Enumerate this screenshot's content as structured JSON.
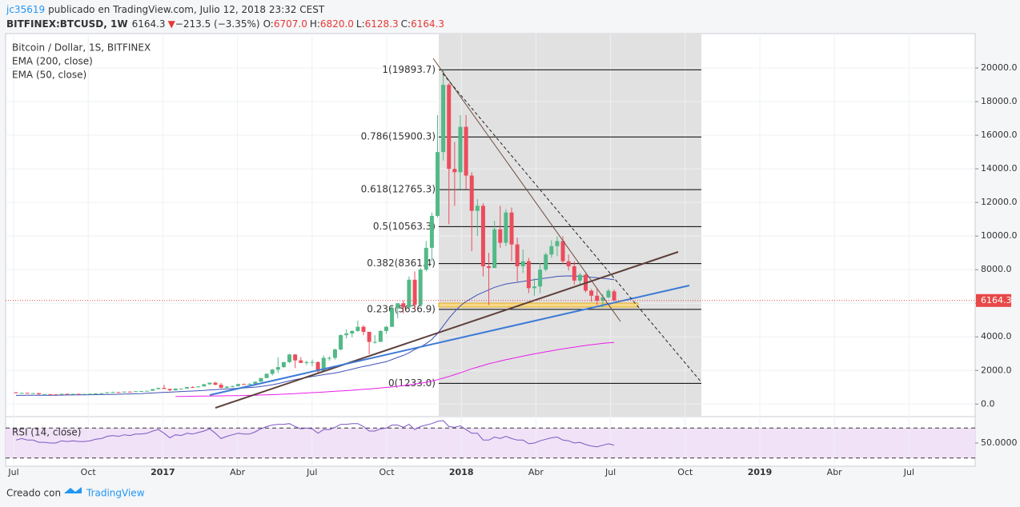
{
  "header": {
    "user": "jc35619",
    "published": "publicado en TradingView.com, Julio 12, 2018 23:32 CEST",
    "symbol": "BITFINEX:BTCUSD, 1W",
    "last": "6164.3",
    "arrow": "▼",
    "change": "−213.5 (−3.35%)",
    "o_label": "O:",
    "o": "6707.0",
    "h_label": "H:",
    "h": "6820.0",
    "l_label": "L:",
    "l": "6128.3",
    "c_label": "C:",
    "c": "6164.3"
  },
  "footer": {
    "text": "Creado con",
    "brand": "TradingView"
  },
  "chart_data": {
    "type": "candlestick",
    "title": "Bitcoin / Dollar, 1S, BITFINEX",
    "up_color": "#53b987",
    "down_color": "#eb4d5c",
    "grid": true,
    "ohlc": [
      [
        700,
        710,
        640,
        650
      ],
      [
        650,
        680,
        640,
        665
      ],
      [
        665,
        675,
        650,
        655
      ],
      [
        655,
        660,
        640,
        655
      ],
      [
        655,
        660,
        540,
        590
      ],
      [
        590,
        600,
        585,
        590
      ],
      [
        590,
        595,
        570,
        580
      ],
      [
        580,
        590,
        570,
        575
      ],
      [
        575,
        615,
        570,
        610
      ],
      [
        610,
        615,
        600,
        605
      ],
      [
        605,
        615,
        600,
        610
      ],
      [
        610,
        612,
        595,
        605
      ],
      [
        605,
        610,
        600,
        605
      ],
      [
        605,
        620,
        605,
        615
      ],
      [
        615,
        640,
        610,
        640
      ],
      [
        640,
        655,
        630,
        650
      ],
      [
        650,
        705,
        645,
        700
      ],
      [
        700,
        740,
        690,
        710
      ],
      [
        710,
        715,
        690,
        705
      ],
      [
        705,
        745,
        700,
        740
      ],
      [
        740,
        750,
        725,
        735
      ],
      [
        735,
        770,
        730,
        765
      ],
      [
        765,
        780,
        750,
        775
      ],
      [
        775,
        795,
        770,
        790
      ],
      [
        790,
        900,
        785,
        890
      ],
      [
        890,
        980,
        880,
        960
      ],
      [
        960,
        1150,
        890,
        900
      ],
      [
        900,
        910,
        760,
        820
      ],
      [
        820,
        930,
        810,
        920
      ],
      [
        920,
        930,
        880,
        920
      ],
      [
        920,
        1020,
        915,
        1010
      ],
      [
        1010,
        1060,
        980,
        1000
      ],
      [
        1000,
        1060,
        995,
        1050
      ],
      [
        1050,
        1200,
        1045,
        1180
      ],
      [
        1180,
        1290,
        1140,
        1270
      ],
      [
        1270,
        1330,
        1120,
        1150
      ],
      [
        1150,
        1260,
        940,
        970
      ],
      [
        970,
        1070,
        890,
        1040
      ],
      [
        1040,
        1100,
        1000,
        1070
      ],
      [
        1070,
        1210,
        1050,
        1190
      ],
      [
        1190,
        1220,
        1160,
        1180
      ],
      [
        1180,
        1240,
        1170,
        1200
      ],
      [
        1200,
        1340,
        1190,
        1330
      ],
      [
        1330,
        1560,
        1320,
        1550
      ],
      [
        1550,
        1830,
        1540,
        1800
      ],
      [
        1800,
        2100,
        1700,
        2050
      ],
      [
        2050,
        2790,
        1850,
        2200
      ],
      [
        2200,
        2500,
        2150,
        2500
      ],
      [
        2500,
        3000,
        2450,
        2950
      ],
      [
        2950,
        2980,
        2140,
        2600
      ],
      [
        2600,
        2790,
        2450,
        2450
      ],
      [
        2450,
        2580,
        2320,
        2500
      ],
      [
        2500,
        2650,
        2250,
        2500
      ],
      [
        2500,
        2550,
        1840,
        1950
      ],
      [
        1950,
        2900,
        1940,
        2750
      ],
      [
        2750,
        2850,
        2580,
        2750
      ],
      [
        2750,
        3300,
        2650,
        3250
      ],
      [
        3250,
        4150,
        3200,
        4100
      ],
      [
        4100,
        4450,
        3900,
        4200
      ],
      [
        4200,
        4400,
        3970,
        4350
      ],
      [
        4350,
        4970,
        4300,
        4600
      ],
      [
        4600,
        4700,
        4100,
        4300
      ],
      [
        4300,
        4300,
        2970,
        3700
      ],
      [
        3700,
        4100,
        3600,
        3700
      ],
      [
        3700,
        4400,
        3700,
        4350
      ],
      [
        4350,
        4650,
        4180,
        4600
      ],
      [
        4600,
        5860,
        4580,
        5700
      ],
      [
        5700,
        6000,
        5100,
        6000
      ],
      [
        6000,
        6170,
        5400,
        5750
      ],
      [
        5750,
        7600,
        5700,
        7400
      ],
      [
        7400,
        7900,
        5600,
        5900
      ],
      [
        5900,
        8100,
        5800,
        8000
      ],
      [
        8000,
        9700,
        7900,
        9300
      ],
      [
        9300,
        11400,
        8500,
        11200
      ],
      [
        11200,
        17200,
        11100,
        15000
      ],
      [
        15000,
        19893.7,
        14500,
        19000
      ],
      [
        19000,
        19100,
        10700,
        14000
      ],
      [
        14000,
        15600,
        11800,
        13800
      ],
      [
        13800,
        17200,
        12800,
        16500
      ],
      [
        16500,
        17200,
        12800,
        13600
      ],
      [
        13600,
        13800,
        9100,
        11500
      ],
      [
        11500,
        12200,
        10000,
        11800
      ],
      [
        11800,
        11950,
        7600,
        8200
      ],
      [
        8200,
        9000,
        5900,
        8100
      ],
      [
        8100,
        10900,
        8100,
        10400
      ],
      [
        10400,
        11800,
        9300,
        9600
      ],
      [
        9600,
        11600,
        9400,
        11400
      ],
      [
        11400,
        11700,
        8500,
        9500
      ],
      [
        9500,
        9900,
        7300,
        8200
      ],
      [
        8200,
        9200,
        7800,
        8500
      ],
      [
        8500,
        8700,
        6600,
        6900
      ],
      [
        6900,
        7500,
        6450,
        7000
      ],
      [
        7000,
        8400,
        6600,
        8000
      ],
      [
        8000,
        9000,
        7900,
        8900
      ],
      [
        8900,
        9750,
        8700,
        9400
      ],
      [
        9400,
        9990,
        8800,
        9700
      ],
      [
        9700,
        10000,
        8350,
        8500
      ],
      [
        8500,
        8900,
        7950,
        8200
      ],
      [
        8200,
        8500,
        7100,
        7350
      ],
      [
        7350,
        7800,
        7050,
        7700
      ],
      [
        7700,
        7750,
        6650,
        6750
      ],
      [
        6750,
        6850,
        6100,
        6450
      ],
      [
        6450,
        6850,
        5900,
        6150
      ],
      [
        6150,
        6550,
        5760,
        6350
      ],
      [
        6350,
        6850,
        6300,
        6750
      ],
      [
        6707,
        6820,
        6128.3,
        6164.3
      ]
    ],
    "ylim": [
      -700,
      22050
    ],
    "yticks": [
      {
        "value": 0,
        "label": "0.0"
      },
      {
        "value": 2000,
        "label": "2000.0"
      },
      {
        "value": 4000,
        "label": "4000.0"
      },
      {
        "value": 6000,
        "label": "6000.0"
      },
      {
        "value": 8000,
        "label": "8000.0"
      },
      {
        "value": 10000,
        "label": "10000.0"
      },
      {
        "value": 12000,
        "label": "12000.0"
      },
      {
        "value": 14000,
        "label": "14000.0"
      },
      {
        "value": 16000,
        "label": "16000.0"
      },
      {
        "value": 18000,
        "label": "18000.0"
      },
      {
        "value": 20000,
        "label": "20000.0"
      }
    ],
    "xticks": [
      "Jul",
      "Oct",
      "2017",
      "Abr",
      "Jul",
      "Oct",
      "2018",
      "Abr",
      "Jul",
      "Oct",
      "2019",
      "Abr",
      "Jul"
    ],
    "price_line_color": "#e84848",
    "series": [
      {
        "name": "EMA (200, close)",
        "color": "#e91ee9",
        "values": [
          null,
          null,
          null,
          null,
          null,
          null,
          null,
          null,
          null,
          null,
          null,
          null,
          null,
          null,
          null,
          null,
          null,
          null,
          null,
          null,
          null,
          null,
          null,
          null,
          null,
          null,
          null,
          null,
          450,
          455,
          460,
          465,
          470,
          475,
          480,
          485,
          490,
          495,
          500,
          505,
          510,
          520,
          530,
          540,
          550,
          560,
          575,
          590,
          605,
          620,
          640,
          660,
          680,
          700,
          720,
          740,
          760,
          780,
          800,
          825,
          850,
          875,
          900,
          930,
          960,
          990,
          1020,
          1060,
          1100,
          1140,
          1190,
          1240,
          1300,
          1370,
          1450,
          1540,
          1640,
          1750,
          1860,
          1980,
          2100,
          2200,
          2300,
          2400,
          2480,
          2560,
          2640,
          2710,
          2780,
          2850,
          2920,
          2990,
          3050,
          3110,
          3170,
          3230,
          3290,
          3340,
          3390,
          3440,
          3490,
          3530,
          3570,
          3610,
          3640,
          3670
        ]
      },
      {
        "name": "EMA (50, close)",
        "color": "#3f51b5",
        "values": [
          520,
          520,
          525,
          525,
          525,
          525,
          530,
          530,
          535,
          540,
          540,
          545,
          550,
          555,
          560,
          565,
          570,
          575,
          585,
          595,
          605,
          615,
          625,
          640,
          660,
          680,
          700,
          710,
          730,
          745,
          760,
          775,
          795,
          815,
          840,
          860,
          880,
          900,
          920,
          940,
          960,
          985,
          1010,
          1050,
          1100,
          1150,
          1220,
          1300,
          1380,
          1450,
          1520,
          1580,
          1640,
          1690,
          1750,
          1800,
          1850,
          1920,
          2000,
          2080,
          2160,
          2240,
          2300,
          2380,
          2450,
          2520,
          2650,
          2780,
          2900,
          3050,
          3250,
          3400,
          3600,
          3850,
          4200,
          4650,
          5100,
          5500,
          5850,
          6100,
          6300,
          6500,
          6650,
          6800,
          6950,
          7050,
          7150,
          7200,
          7250,
          7300,
          7350,
          7400,
          7450,
          7500,
          7550,
          7600,
          7620,
          7630,
          7620,
          7600,
          7580,
          7550,
          7520,
          7480,
          7450,
          7400
        ]
      }
    ],
    "fibonacci": {
      "color": "#000000",
      "levels": [
        {
          "label": "1(19893.7)",
          "value": 19893.7
        },
        {
          "label": "0.786(15900.3)",
          "value": 15900.3
        },
        {
          "label": "0.618(12765.3)",
          "value": 12765.3
        },
        {
          "label": "0.5(10563.3)",
          "value": 10563.3
        },
        {
          "label": "0.382(8361.4)",
          "value": 8361.4
        },
        {
          "label": "0.236(5636.9)",
          "value": 5636.9
        },
        {
          "label": "0(1233.0)",
          "value": 1233.0
        }
      ]
    },
    "rsi": {
      "name": "RSI (14, close)",
      "color": "#7e57c2",
      "ylim": [
        19,
        81
      ],
      "yticks": [
        {
          "value": 50,
          "label": "50.0000"
        }
      ],
      "bands": [
        30,
        70
      ],
      "values": [
        54,
        56,
        54,
        54,
        51,
        51,
        50,
        50,
        53,
        52,
        53,
        52,
        52,
        53,
        55,
        56,
        59,
        60,
        59,
        61,
        60,
        62,
        62,
        63,
        66,
        68,
        63,
        57,
        61,
        60,
        63,
        62,
        64,
        66,
        69,
        63,
        56,
        59,
        61,
        63,
        62,
        62,
        65,
        69,
        72,
        74,
        75,
        75,
        76,
        72,
        69,
        70,
        69,
        63,
        68,
        68,
        71,
        75,
        75,
        76,
        76,
        72,
        66,
        66,
        69,
        70,
        74,
        74,
        71,
        75,
        68,
        72,
        74,
        76,
        79,
        80,
        72,
        71,
        73,
        68,
        63,
        63,
        54,
        54,
        58,
        56,
        59,
        56,
        54,
        54,
        49,
        50,
        53,
        55,
        57,
        58,
        54,
        53,
        50,
        51,
        48,
        46,
        45,
        47,
        49,
        47
      ]
    }
  }
}
